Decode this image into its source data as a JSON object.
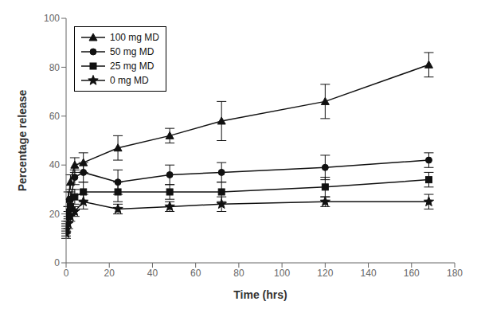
{
  "chart_data": {
    "type": "line",
    "xlabel": "Time (hrs)",
    "ylabel": "Percentage release",
    "x": [
      0,
      1,
      2,
      4,
      8,
      24,
      48,
      72,
      120,
      168
    ],
    "xlim": [
      0,
      180
    ],
    "ylim": [
      0,
      100
    ],
    "xticks": [
      0,
      20,
      40,
      60,
      80,
      100,
      120,
      140,
      160,
      180
    ],
    "yticks": [
      0,
      20,
      40,
      60,
      80,
      100
    ],
    "grid": false,
    "legend": "upper left",
    "series": [
      {
        "name": "100 mg MD",
        "color": "#111111",
        "marker": "triangle",
        "values": [
          15,
          26,
          33,
          40,
          41,
          47,
          52,
          58,
          66,
          81
        ],
        "errors": [
          2,
          3,
          3,
          3,
          4,
          5,
          3,
          8,
          7,
          5
        ]
      },
      {
        "name": "50 mg MD",
        "color": "#111111",
        "marker": "circle",
        "values": [
          14,
          21,
          26,
          35,
          37,
          33,
          36,
          37,
          39,
          42
        ],
        "errors": [
          2,
          2,
          3,
          3,
          4,
          5,
          4,
          4,
          5,
          3
        ]
      },
      {
        "name": "25 mg MD",
        "color": "#111111",
        "marker": "square",
        "values": [
          13,
          19,
          23,
          27,
          29,
          29,
          29,
          29,
          31,
          34
        ],
        "errors": [
          2,
          2,
          3,
          3,
          4,
          4,
          3,
          4,
          4,
          3
        ]
      },
      {
        "name": "0 mg MD",
        "color": "#111111",
        "marker": "star",
        "values": [
          12,
          16,
          19,
          21,
          25,
          22,
          23,
          24,
          25,
          25
        ],
        "errors": [
          2,
          2,
          2,
          2,
          3,
          2,
          2,
          3,
          2,
          3
        ]
      }
    ]
  }
}
